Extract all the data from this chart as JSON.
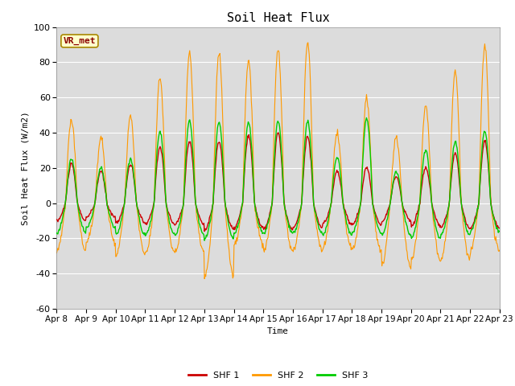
{
  "title": "Soil Heat Flux",
  "ylabel": "Soil Heat Flux (W/m2)",
  "xlabel": "Time",
  "ylim": [
    -60,
    100
  ],
  "yticks": [
    -60,
    -40,
    -20,
    0,
    20,
    40,
    60,
    80,
    100
  ],
  "xtick_labels": [
    "Apr 8",
    "Apr 9",
    "Apr 10",
    "Apr 11",
    "Apr 12",
    "Apr 13",
    "Apr 14",
    "Apr 15",
    "Apr 16",
    "Apr 17",
    "Apr 18",
    "Apr 19",
    "Apr 20",
    "Apr 21",
    "Apr 22",
    "Apr 23"
  ],
  "legend_labels": [
    "SHF 1",
    "SHF 2",
    "SHF 3"
  ],
  "colors": [
    "#cc0000",
    "#ff9900",
    "#00cc00"
  ],
  "bg_color": "#dcdcdc",
  "watermark_text": "VR_met",
  "watermark_bg": "#ffffcc",
  "watermark_border": "#aa8800",
  "n_days": 15,
  "points_per_day": 48,
  "day_amps_shf2": [
    47,
    37,
    49,
    71,
    85,
    85,
    82,
    87,
    91,
    40,
    59,
    37,
    55,
    75,
    90
  ],
  "day_amps_shf1": [
    22,
    18,
    22,
    32,
    35,
    35,
    38,
    40,
    38,
    18,
    20,
    15,
    20,
    28,
    35
  ],
  "day_amps_shf3": [
    25,
    20,
    25,
    41,
    47,
    46,
    46,
    47,
    47,
    26,
    48,
    18,
    30,
    35,
    41
  ],
  "night_amps_shf2": [
    27,
    22,
    29,
    28,
    28,
    42,
    24,
    27,
    27,
    26,
    27,
    36,
    32,
    32,
    27
  ],
  "night_amps_shf1": [
    10,
    8,
    11,
    12,
    12,
    15,
    14,
    15,
    14,
    12,
    12,
    10,
    13,
    14,
    14
  ],
  "night_amps_shf3": [
    17,
    14,
    18,
    18,
    18,
    20,
    17,
    17,
    17,
    18,
    17,
    18,
    20,
    18,
    16
  ]
}
